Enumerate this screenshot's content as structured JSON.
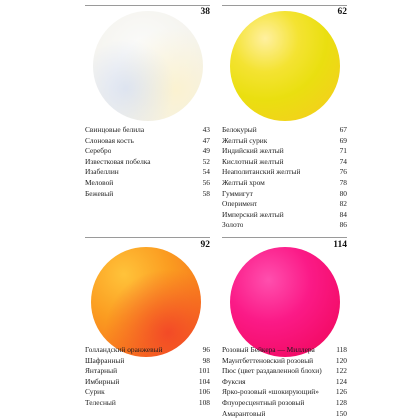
{
  "sections": [
    {
      "number": "38",
      "swatch": "white",
      "items": [
        {
          "name": "Свинцовые белила",
          "page": "43"
        },
        {
          "name": "Слоновая кость",
          "page": "47"
        },
        {
          "name": "Серебро",
          "page": "49"
        },
        {
          "name": "Известковая побелка",
          "page": "52"
        },
        {
          "name": "Изабеллин",
          "page": "54"
        },
        {
          "name": "Меловой",
          "page": "56"
        },
        {
          "name": "Бежевый",
          "page": "58"
        }
      ]
    },
    {
      "number": "62",
      "swatch": "yellow",
      "items": [
        {
          "name": "Белокурый",
          "page": "67"
        },
        {
          "name": "Желтый сурик",
          "page": "69"
        },
        {
          "name": "Индийский желтый",
          "page": "71"
        },
        {
          "name": "Кислотный желтый",
          "page": "74"
        },
        {
          "name": "Неаполитанский желтый",
          "page": "76"
        },
        {
          "name": "Желтый хром",
          "page": "78"
        },
        {
          "name": "Гуммигут",
          "page": "80"
        },
        {
          "name": "Оперимент",
          "page": "82"
        },
        {
          "name": "Имперский желтый",
          "page": "84"
        },
        {
          "name": "Золото",
          "page": "86"
        }
      ]
    },
    {
      "number": "92",
      "swatch": "orange",
      "items": [
        {
          "name": "Голландский оранжевый",
          "page": "96"
        },
        {
          "name": "Шафранный",
          "page": "98"
        },
        {
          "name": "Янтарный",
          "page": "101"
        },
        {
          "name": "Имбирный",
          "page": "104"
        },
        {
          "name": "Сурик",
          "page": "106"
        },
        {
          "name": "Телесный",
          "page": "108"
        }
      ]
    },
    {
      "number": "114",
      "swatch": "pink",
      "items": [
        {
          "name": "Розовый Бейкера — Миллера",
          "page": "118"
        },
        {
          "name": "Маунтбеттеновский розовый",
          "page": "120"
        },
        {
          "name": "Пюс (цвет раздавленной блохи)",
          "page": "122"
        },
        {
          "name": "Фуксия",
          "page": "124"
        },
        {
          "name": "Ярко-розовый «шокирующий»",
          "page": "126"
        },
        {
          "name": "Флуоресцентный розовый",
          "page": "128"
        },
        {
          "name": "Амарантовый",
          "page": "150"
        }
      ]
    }
  ],
  "colors": {
    "white": "#f5f4ef",
    "yellow": "#eadf10",
    "orange": "#f77a1c",
    "pink": "#f40d6a"
  }
}
